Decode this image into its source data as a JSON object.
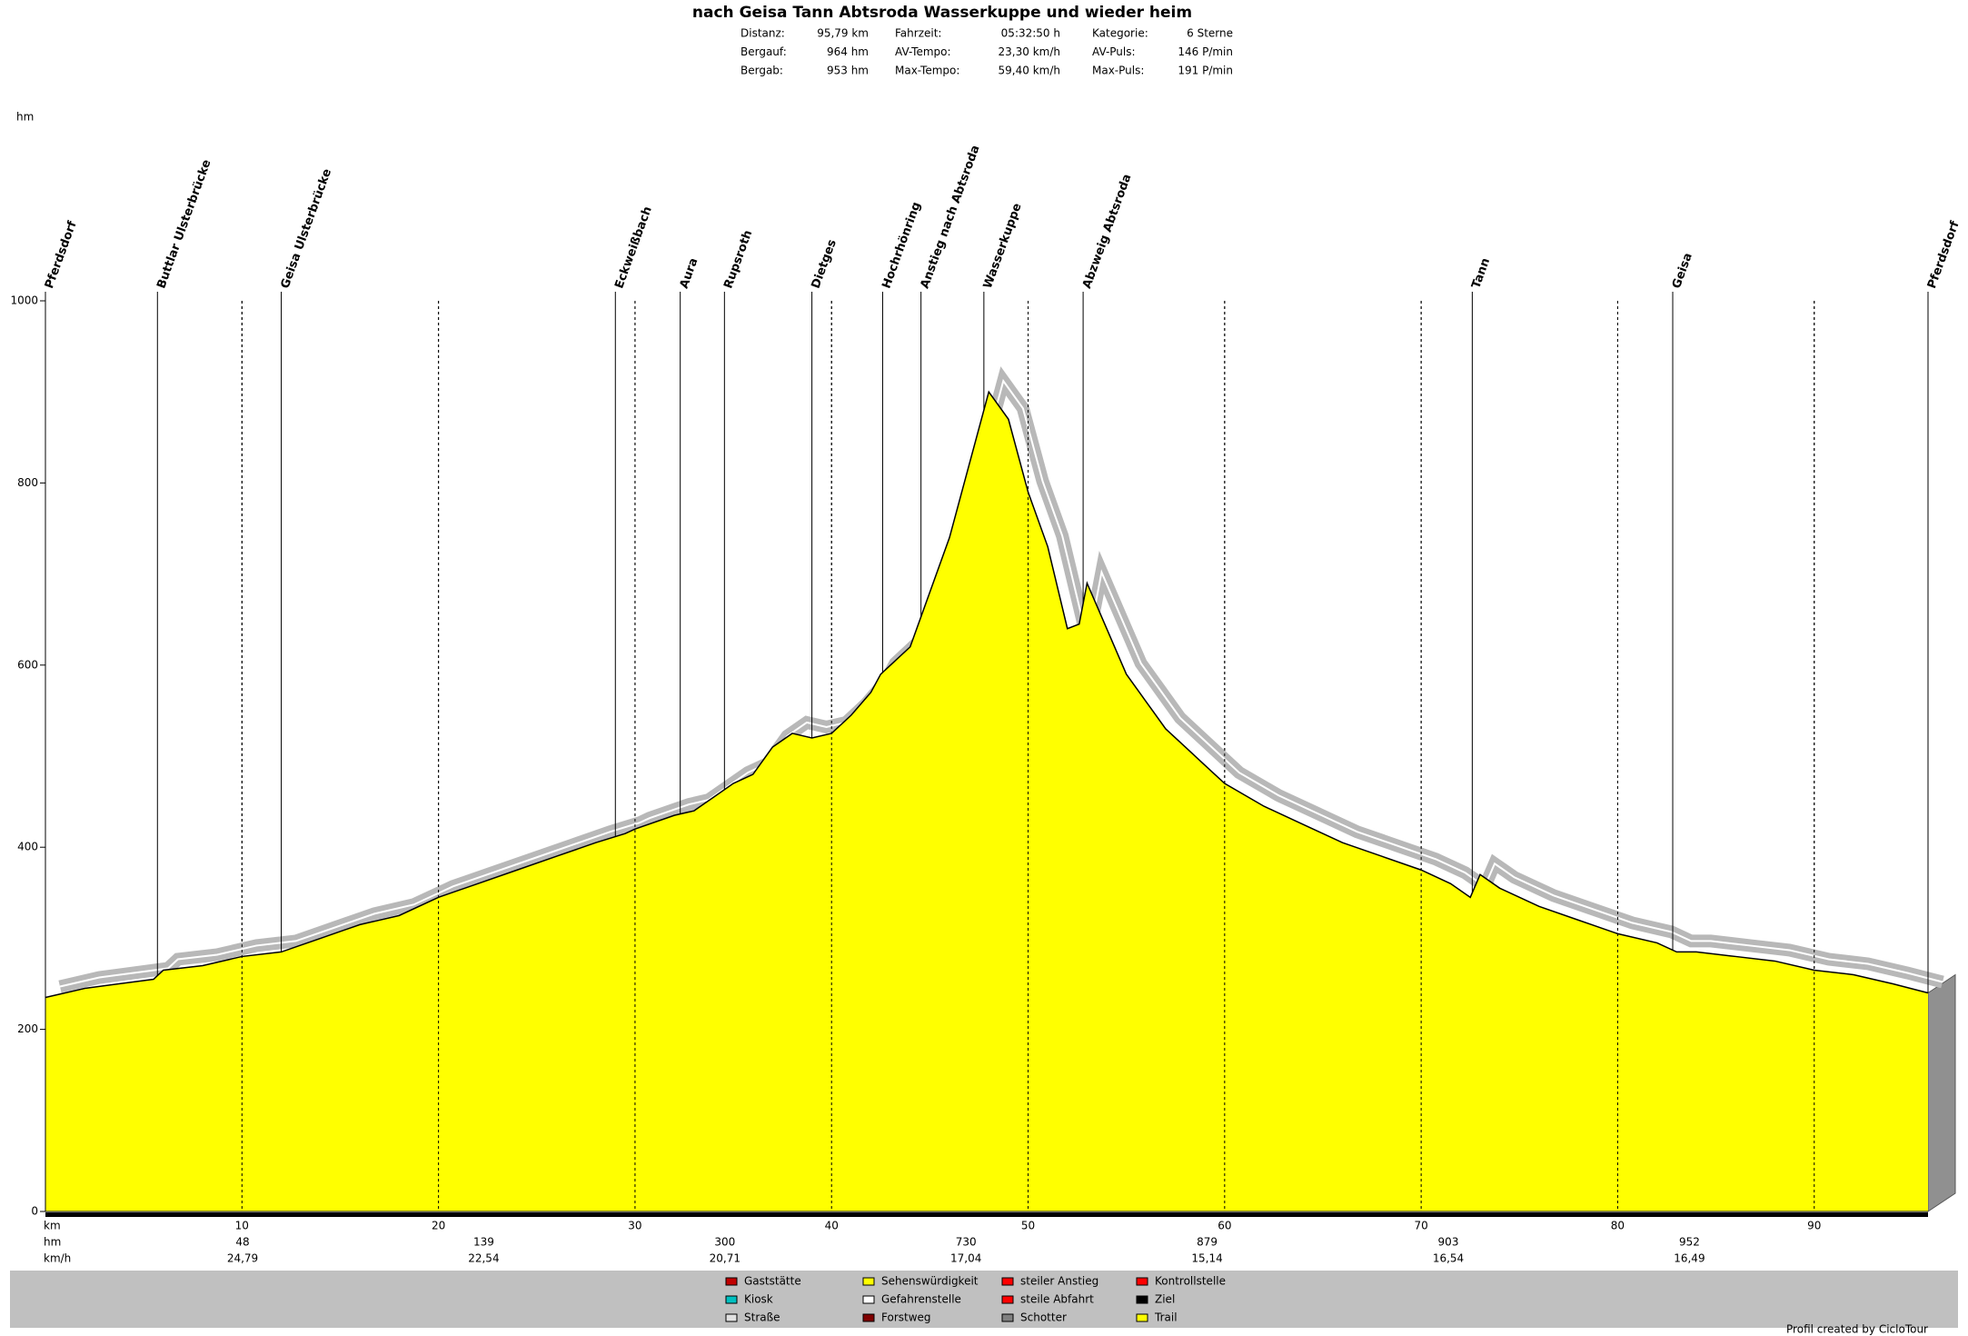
{
  "header": {
    "title": "nach Geisa Tann Abtsroda Wasserkuppe und wieder heim",
    "stats": [
      [
        "Distanz:",
        "95,79 km",
        "Fahrzeit:",
        "05:32:50 h",
        "Kategorie:",
        "6 Sterne"
      ],
      [
        "Bergauf:",
        "964 hm",
        "AV-Tempo:",
        "23,30 km/h",
        "AV-Puls:",
        "146 P/min"
      ],
      [
        "Bergab:",
        "953 hm",
        "Max-Tempo:",
        "59,40 km/h",
        "Max-Puls:",
        "191 P/min"
      ]
    ]
  },
  "chart_data": {
    "type": "area",
    "y_label": "hm",
    "x_label": "km",
    "xlim": [
      0,
      95.79
    ],
    "ylim": [
      0,
      1000
    ],
    "xticks": [
      10,
      20,
      30,
      40,
      50,
      60,
      70,
      80,
      90
    ],
    "yticks": [
      0,
      200,
      400,
      600,
      800,
      1000
    ],
    "series": [
      {
        "color": "#ffff00",
        "x": [
          0,
          2,
          5.5,
          6,
          8,
          10,
          12,
          14,
          16,
          18,
          20,
          22,
          24,
          26,
          28,
          29.5,
          30,
          32,
          33,
          34,
          35,
          36,
          37,
          38,
          39,
          40,
          41,
          42,
          42.5,
          43,
          44,
          45,
          46,
          47,
          48,
          49,
          50,
          51,
          52,
          52.6,
          53,
          54,
          55,
          56,
          57,
          58,
          59,
          60,
          62,
          64,
          66,
          68,
          70,
          71.5,
          72.5,
          73,
          74,
          76,
          78,
          80,
          82,
          83,
          84,
          86,
          88,
          90,
          92,
          94,
          95.79
        ],
        "y": [
          235,
          245,
          255,
          265,
          270,
          280,
          285,
          300,
          315,
          325,
          345,
          360,
          375,
          390,
          405,
          415,
          420,
          435,
          440,
          455,
          470,
          480,
          510,
          525,
          520,
          525,
          545,
          570,
          590,
          600,
          620,
          680,
          740,
          820,
          900,
          870,
          790,
          730,
          640,
          645,
          690,
          640,
          590,
          560,
          530,
          510,
          490,
          470,
          445,
          425,
          405,
          390,
          375,
          360,
          345,
          370,
          355,
          335,
          320,
          305,
          295,
          285,
          285,
          280,
          275,
          265,
          260,
          250,
          240
        ]
      }
    ],
    "waypoints": [
      {
        "label": "Pferdsdorf",
        "x": 0
      },
      {
        "label": "Buttlar Ulsterbrücke",
        "x": 5.7
      },
      {
        "label": "Geisa Ulsterbrücke",
        "x": 12
      },
      {
        "label": "Eckweißbach",
        "x": 29
      },
      {
        "label": "Aura",
        "x": 32.3
      },
      {
        "label": "Rupsroth",
        "x": 34.55
      },
      {
        "label": "Dietges",
        "x": 39
      },
      {
        "label": "Hochrhönring",
        "x": 42.6
      },
      {
        "label": "Anstieg nach Abtsroda",
        "x": 44.55
      },
      {
        "label": "Wasserkuppe",
        "x": 47.75
      },
      {
        "label": "Abzweig Abtsroda",
        "x": 52.8
      },
      {
        "label": "Tann",
        "x": 72.6
      },
      {
        "label": "Geisa",
        "x": 82.8
      },
      {
        "label": "Pferdsdorf",
        "x": 95.79
      }
    ],
    "segments": {
      "hm_label": "hm",
      "speed_label": "km/h",
      "hm": [
        48,
        139,
        300,
        730,
        879,
        903,
        952
      ],
      "speed": [
        "24,79",
        "22,54",
        "20,71",
        "17,04",
        "15,14",
        "16,54",
        "16,49"
      ]
    }
  },
  "legend": [
    "Gaststätte",
    "Kiosk",
    "Straße",
    "Sehenswürdigkeit",
    "Gefahrenstelle",
    "Forstweg",
    "steiler Anstieg",
    "steile Abfahrt",
    "Schotter",
    "Kontrollstelle",
    "Ziel",
    "Trail"
  ],
  "credit": "Profil created by CicloTour"
}
